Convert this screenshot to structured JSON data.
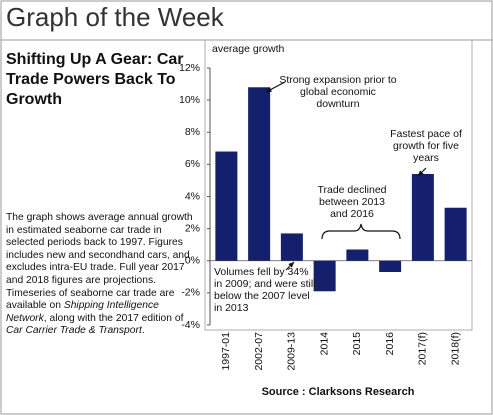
{
  "header": {
    "title": "Graph of the Week"
  },
  "sidebar": {
    "title": "Shifting Up A Gear: Car Trade Powers Back To Growth",
    "description": [
      "The graph shows average annual growth in estimated seaborne car trade in selected periods back to 1997. Figures includes new and secondhand cars, and excludes intra-EU trade. Full year 2017 and 2018 figures are projections. Timeseries of seaborne car trade are available on ",
      "Shipping Intelligence Network",
      ", along with the 2017 edition of ",
      "Car Carrier Trade & Transport",
      "."
    ]
  },
  "chart_data": {
    "type": "bar",
    "y_label": "average growth",
    "categories": [
      "1997-01",
      "2002-07",
      "2009-13",
      "2014",
      "2015",
      "2016",
      "2017(f)",
      "2018(f)"
    ],
    "values": [
      6.8,
      10.8,
      1.7,
      -1.9,
      0.7,
      -0.7,
      5.4,
      3.3
    ],
    "color": "#14206b",
    "ylim": [
      -4,
      12
    ],
    "yticks": [
      {
        "value": -4,
        "label": "-4%"
      },
      {
        "value": -2,
        "label": "-2%"
      },
      {
        "value": 0,
        "label": "0%"
      },
      {
        "value": 2,
        "label": "2%"
      },
      {
        "value": 4,
        "label": "4%"
      },
      {
        "value": 6,
        "label": "6%"
      },
      {
        "value": 8,
        "label": "8%"
      },
      {
        "value": 10,
        "label": "10%"
      },
      {
        "value": 12,
        "label": "12%"
      }
    ],
    "annotations": [
      {
        "lines": [
          "Strong expansion prior to",
          "global economic",
          "downturn"
        ]
      },
      {
        "lines": [
          "Fastest pace of",
          "growth for five",
          "years"
        ]
      },
      {
        "lines": [
          "Trade declined",
          "between 2013",
          "and 2016"
        ]
      },
      {
        "lines": [
          "Volumes fell by 34%",
          "in 2009; and were still",
          "below the 2007 level",
          "in 2013"
        ]
      }
    ],
    "source": "Source : Clarksons Research"
  }
}
